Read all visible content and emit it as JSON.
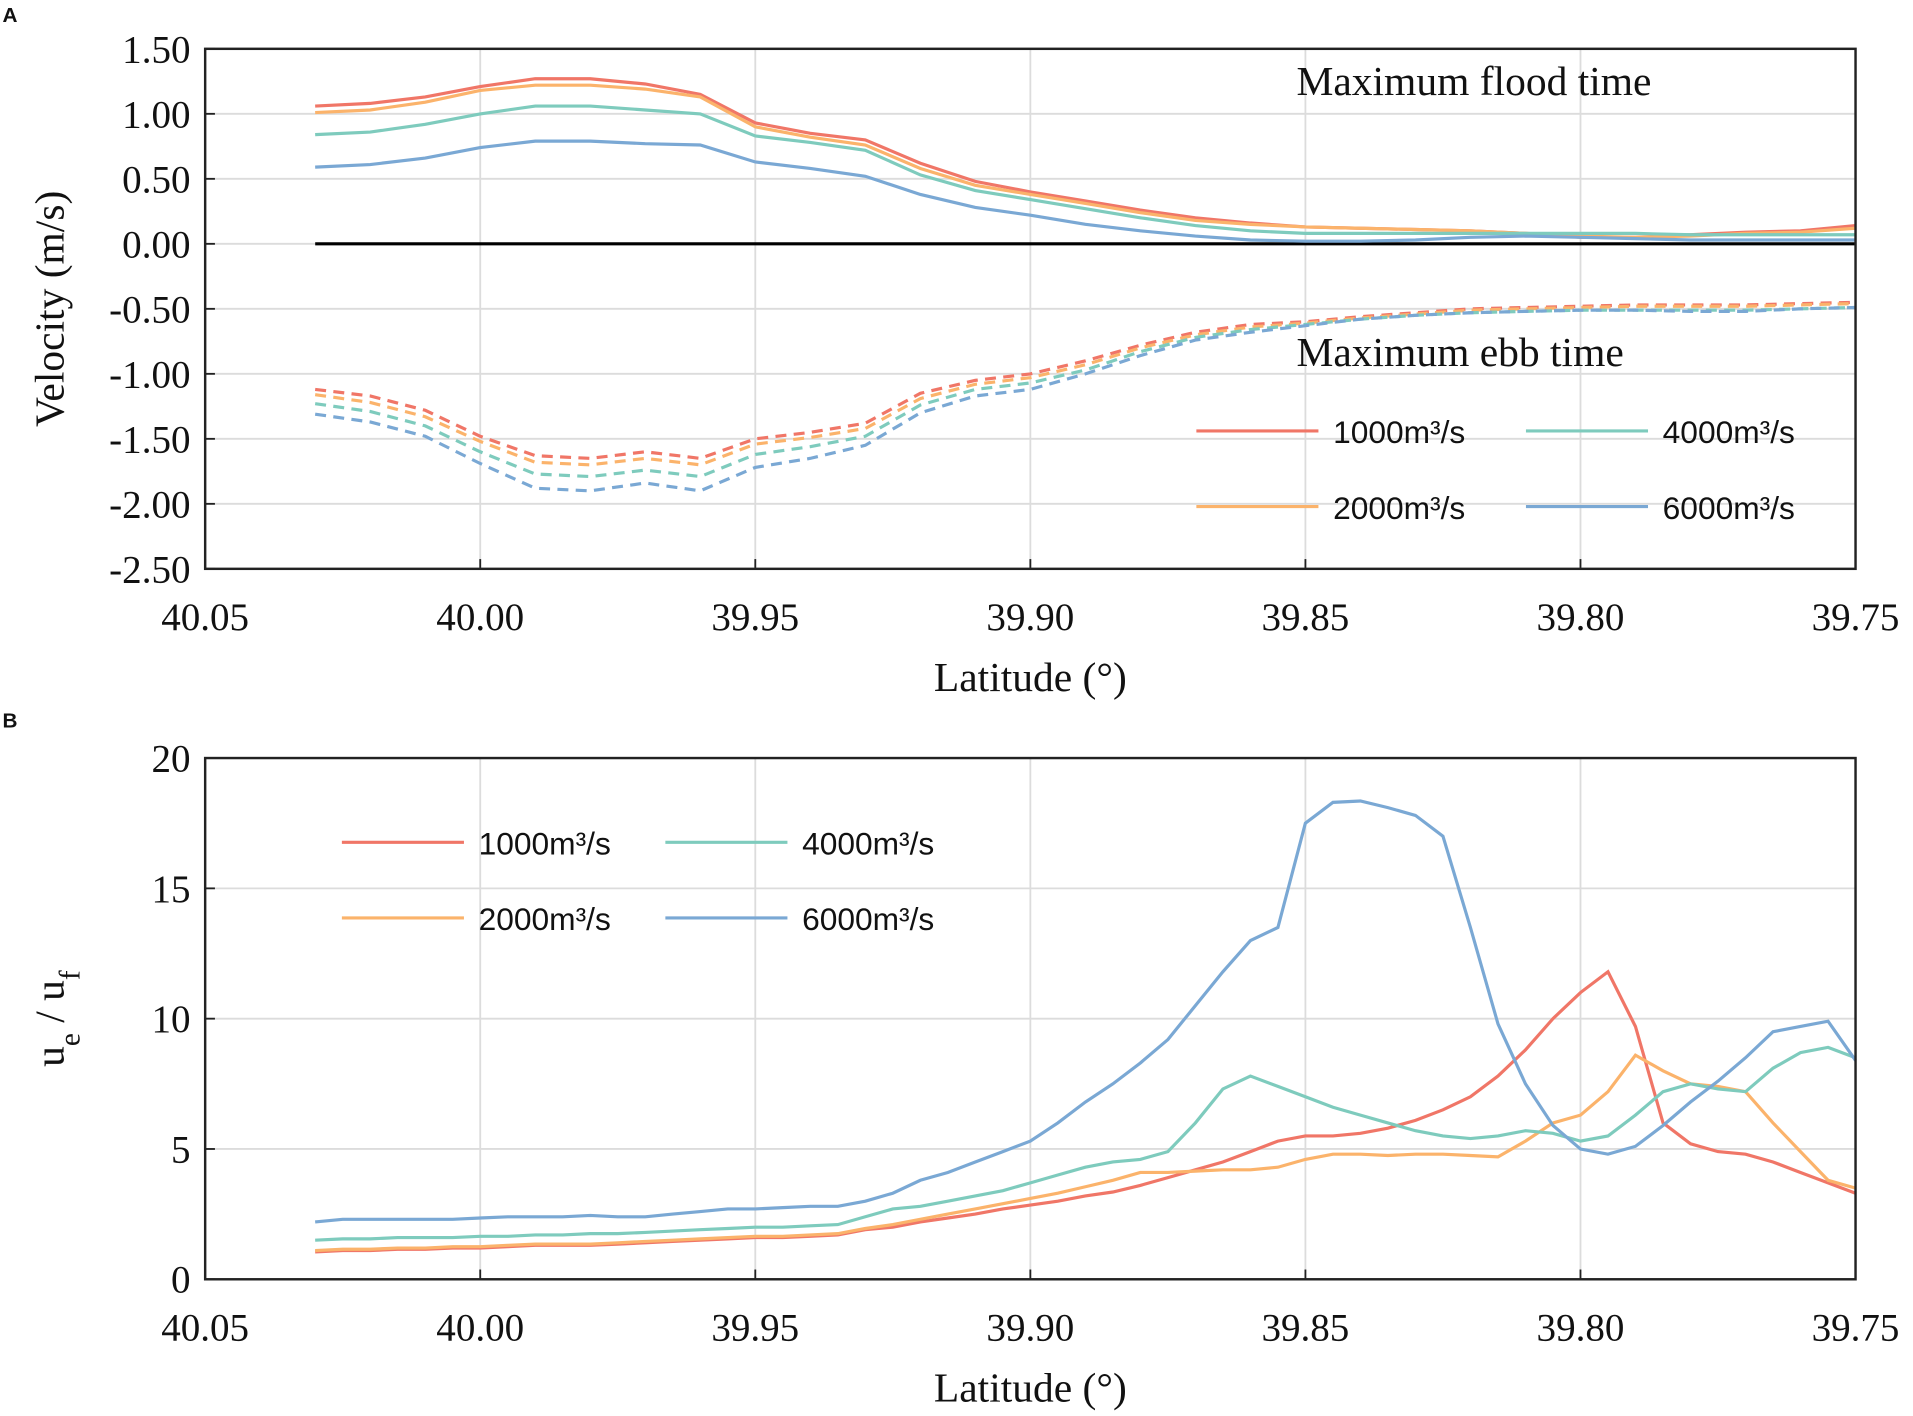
{
  "chart_data": [
    {
      "type": "line",
      "panel": "A",
      "ylabel": "Velocity (m/s)",
      "xlabel": "Latitude (°)",
      "annotations": [
        "Maximum flood time",
        "Maximum ebb time"
      ],
      "xlim": [
        40.05,
        39.75
      ],
      "ylim": [
        -2.5,
        1.5
      ],
      "grid": true,
      "zero_line": true,
      "legend": "lower right",
      "xticks": [
        40.05,
        {
          "value": 40.0,
          "label": "40.00"
        },
        39.95,
        {
          "value": 39.9,
          "label": "39.90"
        },
        39.85,
        {
          "value": 39.8,
          "label": "39.80"
        },
        39.75
      ],
      "yticks": [
        {
          "value": -2.5,
          "label": "-2.50"
        },
        {
          "value": -2.0,
          "label": "-2.00"
        },
        {
          "value": -1.5,
          "label": "-1.50"
        },
        {
          "value": -1.0,
          "label": "-1.00"
        },
        {
          "value": -0.5,
          "label": "-0.50"
        },
        {
          "value": 0,
          "label": "0.00"
        },
        {
          "value": 0.5,
          "label": "0.50"
        },
        {
          "value": 1.0,
          "label": "1.00"
        },
        {
          "value": 1.5,
          "label": "1.50"
        }
      ],
      "x": [
        40.03,
        40.02,
        40.01,
        40.0,
        39.99,
        39.98,
        39.97,
        39.96,
        39.95,
        39.94,
        39.93,
        39.92,
        39.91,
        39.9,
        39.89,
        39.88,
        39.87,
        39.86,
        39.85,
        39.84,
        39.83,
        39.82,
        39.81,
        39.8,
        39.79,
        39.78,
        39.77,
        39.76,
        39.75
      ],
      "series": [
        {
          "name": "1000m³/s",
          "color": "#f07667",
          "values": [
            1.06,
            1.08,
            1.13,
            1.21,
            1.27,
            1.27,
            1.23,
            1.15,
            0.93,
            0.85,
            0.8,
            0.62,
            0.48,
            0.4,
            0.33,
            0.26,
            0.2,
            0.16,
            0.13,
            0.12,
            0.11,
            0.1,
            0.08,
            0.05,
            0.05,
            0.07,
            0.09,
            0.1,
            0.14
          ],
          "ebb_values": [
            -1.12,
            -1.17,
            -1.28,
            -1.48,
            -1.63,
            -1.65,
            -1.6,
            -1.65,
            -1.5,
            -1.45,
            -1.38,
            -1.15,
            -1.05,
            -1.0,
            -0.9,
            -0.78,
            -0.68,
            -0.62,
            -0.6,
            -0.56,
            -0.53,
            -0.5,
            -0.49,
            -0.48,
            -0.47,
            -0.47,
            -0.47,
            -0.46,
            -0.45
          ]
        },
        {
          "name": "2000m³/s",
          "color": "#fbb36b",
          "values": [
            1.01,
            1.03,
            1.09,
            1.18,
            1.22,
            1.22,
            1.19,
            1.13,
            0.9,
            0.82,
            0.76,
            0.58,
            0.45,
            0.38,
            0.31,
            0.24,
            0.18,
            0.15,
            0.13,
            0.12,
            0.11,
            0.1,
            0.08,
            0.06,
            0.05,
            0.06,
            0.08,
            0.09,
            0.12
          ],
          "ebb_values": [
            -1.16,
            -1.22,
            -1.33,
            -1.52,
            -1.68,
            -1.7,
            -1.65,
            -1.7,
            -1.54,
            -1.49,
            -1.42,
            -1.19,
            -1.08,
            -1.03,
            -0.93,
            -0.8,
            -0.7,
            -0.64,
            -0.61,
            -0.57,
            -0.54,
            -0.51,
            -0.5,
            -0.49,
            -0.48,
            -0.48,
            -0.48,
            -0.47,
            -0.46
          ]
        },
        {
          "name": "4000m³/s",
          "color": "#7ecbbd",
          "values": [
            0.84,
            0.86,
            0.92,
            1.0,
            1.06,
            1.06,
            1.03,
            1.0,
            0.83,
            0.78,
            0.72,
            0.53,
            0.41,
            0.34,
            0.27,
            0.2,
            0.14,
            0.1,
            0.08,
            0.08,
            0.08,
            0.08,
            0.08,
            0.08,
            0.08,
            0.07,
            0.07,
            0.07,
            0.07
          ],
          "ebb_values": [
            -1.23,
            -1.29,
            -1.4,
            -1.6,
            -1.77,
            -1.79,
            -1.74,
            -1.79,
            -1.62,
            -1.56,
            -1.48,
            -1.24,
            -1.12,
            -1.07,
            -0.97,
            -0.83,
            -0.72,
            -0.66,
            -0.62,
            -0.58,
            -0.55,
            -0.53,
            -0.52,
            -0.51,
            -0.51,
            -0.51,
            -0.51,
            -0.5,
            -0.49
          ]
        },
        {
          "name": "6000m³/s",
          "color": "#7aa8d4",
          "values": [
            0.59,
            0.61,
            0.66,
            0.74,
            0.79,
            0.79,
            0.77,
            0.76,
            0.63,
            0.58,
            0.52,
            0.38,
            0.28,
            0.22,
            0.15,
            0.1,
            0.06,
            0.03,
            0.02,
            0.02,
            0.03,
            0.05,
            0.06,
            0.05,
            0.04,
            0.03,
            0.03,
            0.03,
            0.03
          ],
          "ebb_values": [
            -1.31,
            -1.37,
            -1.48,
            -1.69,
            -1.88,
            -1.9,
            -1.84,
            -1.9,
            -1.72,
            -1.65,
            -1.55,
            -1.3,
            -1.17,
            -1.12,
            -1.0,
            -0.86,
            -0.74,
            -0.68,
            -0.63,
            -0.58,
            -0.55,
            -0.53,
            -0.52,
            -0.51,
            -0.51,
            -0.52,
            -0.52,
            -0.5,
            -0.49
          ]
        }
      ]
    },
    {
      "type": "line",
      "panel": "B",
      "ylabel": [
        "u",
        "e",
        " / u",
        "f"
      ],
      "xlabel": "Latitude (°)",
      "xlim": [
        40.05,
        39.75
      ],
      "ylim": [
        0,
        20
      ],
      "grid": true,
      "legend": "upper left",
      "xticks": [
        40.05,
        {
          "value": 40.0,
          "label": "40.00"
        },
        39.95,
        {
          "value": 39.9,
          "label": "39.90"
        },
        39.85,
        {
          "value": 39.8,
          "label": "39.80"
        },
        39.75
      ],
      "yticks": [
        0,
        5,
        10,
        15,
        20
      ],
      "x": [
        40.03,
        40.025,
        40.02,
        40.015,
        40.01,
        40.005,
        40.0,
        39.995,
        39.99,
        39.985,
        39.98,
        39.975,
        39.97,
        39.965,
        39.96,
        39.955,
        39.95,
        39.945,
        39.94,
        39.935,
        39.93,
        39.925,
        39.92,
        39.915,
        39.91,
        39.905,
        39.9,
        39.895,
        39.89,
        39.885,
        39.88,
        39.875,
        39.87,
        39.865,
        39.86,
        39.855,
        39.85,
        39.845,
        39.84,
        39.835,
        39.83,
        39.825,
        39.82,
        39.815,
        39.81,
        39.805,
        39.8,
        39.795,
        39.79,
        39.785,
        39.78,
        39.775,
        39.77,
        39.765,
        39.76,
        39.755,
        39.75
      ],
      "series": [
        {
          "name": "1000m³/s",
          "color": "#f07667",
          "values": [
            1.05,
            1.1,
            1.1,
            1.15,
            1.15,
            1.2,
            1.2,
            1.25,
            1.3,
            1.3,
            1.3,
            1.35,
            1.4,
            1.45,
            1.5,
            1.55,
            1.6,
            1.6,
            1.65,
            1.7,
            1.9,
            2.0,
            2.2,
            2.35,
            2.5,
            2.7,
            2.85,
            3.0,
            3.2,
            3.35,
            3.6,
            3.9,
            4.2,
            4.5,
            4.9,
            5.3,
            5.5,
            5.5,
            5.6,
            5.8,
            6.1,
            6.5,
            7.0,
            7.8,
            8.8,
            10.0,
            11.0,
            11.8,
            9.7,
            6.0,
            5.2,
            4.9,
            4.8,
            4.5,
            4.1,
            3.7,
            3.3
          ]
        },
        {
          "name": "2000m³/s",
          "color": "#fbb36b",
          "values": [
            1.1,
            1.15,
            1.15,
            1.2,
            1.2,
            1.25,
            1.25,
            1.3,
            1.35,
            1.35,
            1.35,
            1.4,
            1.45,
            1.5,
            1.55,
            1.6,
            1.65,
            1.65,
            1.7,
            1.75,
            1.95,
            2.1,
            2.3,
            2.5,
            2.7,
            2.9,
            3.1,
            3.3,
            3.55,
            3.8,
            4.1,
            4.1,
            4.15,
            4.2,
            4.2,
            4.3,
            4.6,
            4.8,
            4.8,
            4.75,
            4.8,
            4.8,
            4.75,
            4.7,
            5.3,
            6.0,
            6.3,
            7.2,
            8.6,
            8.0,
            7.5,
            7.4,
            7.2,
            6.0,
            4.9,
            3.8,
            3.5
          ]
        },
        {
          "name": "4000m³/s",
          "color": "#7ecbbd",
          "values": [
            1.5,
            1.55,
            1.55,
            1.6,
            1.6,
            1.6,
            1.65,
            1.65,
            1.7,
            1.7,
            1.75,
            1.75,
            1.8,
            1.85,
            1.9,
            1.95,
            2.0,
            2.0,
            2.05,
            2.1,
            2.4,
            2.7,
            2.8,
            3.0,
            3.2,
            3.4,
            3.7,
            4.0,
            4.3,
            4.5,
            4.6,
            4.9,
            6.0,
            7.3,
            7.8,
            7.4,
            7.0,
            6.6,
            6.3,
            6.0,
            5.7,
            5.5,
            5.4,
            5.5,
            5.7,
            5.6,
            5.3,
            5.5,
            6.3,
            7.2,
            7.5,
            7.3,
            7.2,
            8.1,
            8.7,
            8.9,
            8.5
          ]
        },
        {
          "name": "6000m³/s",
          "color": "#7aa8d4",
          "values": [
            2.2,
            2.3,
            2.3,
            2.3,
            2.3,
            2.3,
            2.35,
            2.4,
            2.4,
            2.4,
            2.45,
            2.4,
            2.4,
            2.5,
            2.6,
            2.7,
            2.7,
            2.75,
            2.8,
            2.8,
            3.0,
            3.3,
            3.8,
            4.1,
            4.5,
            4.9,
            5.3,
            6.0,
            6.8,
            7.5,
            8.3,
            9.2,
            10.5,
            11.8,
            13.0,
            13.5,
            17.5,
            18.3,
            18.35,
            18.1,
            17.8,
            17.0,
            13.5,
            9.8,
            7.5,
            5.9,
            5.0,
            4.8,
            5.1,
            5.9,
            6.8,
            7.6,
            8.5,
            9.5,
            9.7,
            9.9,
            8.4
          ]
        }
      ]
    }
  ]
}
